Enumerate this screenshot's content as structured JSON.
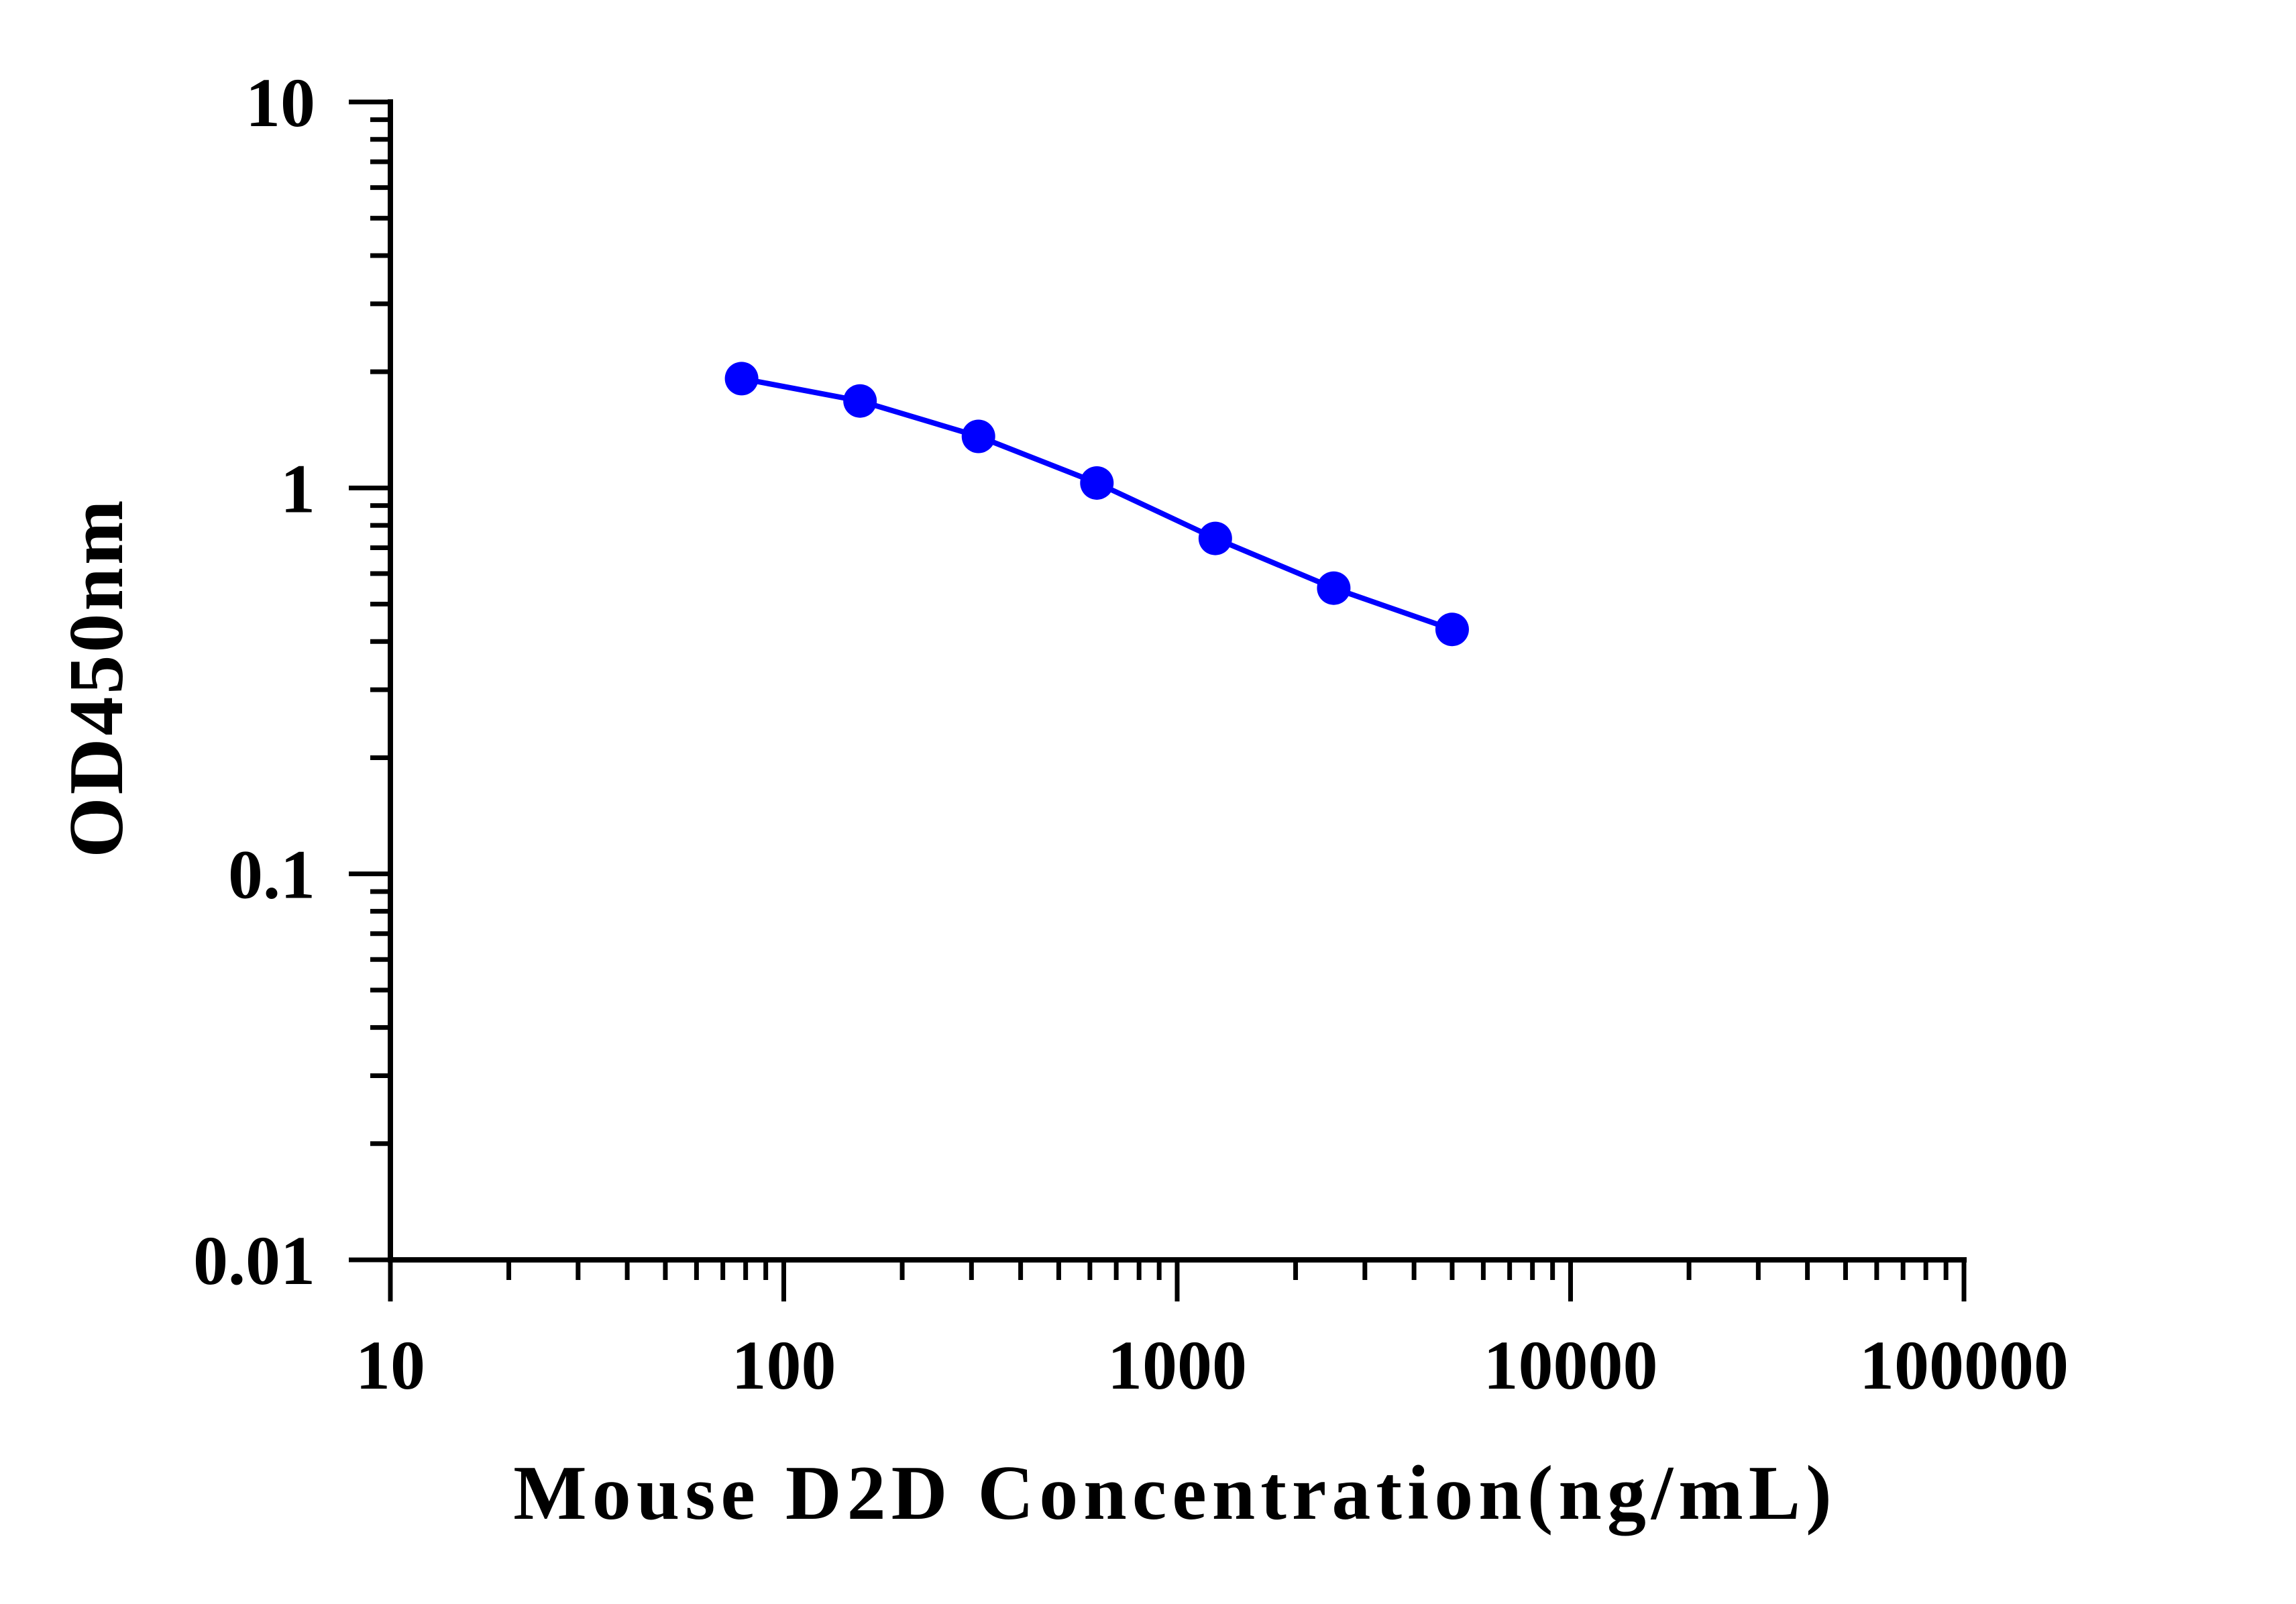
{
  "chart_data": {
    "type": "line",
    "title": "",
    "xlabel": "Mouse D2D Concentration(ng/mL)",
    "ylabel": "OD450nm",
    "x_scale": "log",
    "y_scale": "log",
    "xlim": [
      10,
      100000
    ],
    "ylim": [
      0.01,
      10
    ],
    "x_ticks": [
      10,
      100,
      1000,
      10000,
      100000
    ],
    "x_tick_labels": [
      "10",
      "100",
      "1000",
      "10000",
      "100000"
    ],
    "y_ticks": [
      0.01,
      0.1,
      1,
      10
    ],
    "y_tick_labels": [
      "0.01",
      "0.1",
      "1",
      "10"
    ],
    "grid": false,
    "legend": "none",
    "series": [
      {
        "color": "#0000ff",
        "x": [
          78.125,
          156.25,
          312.5,
          625,
          1250,
          2500,
          5000
        ],
        "y": [
          1.92,
          1.68,
          1.36,
          1.03,
          0.74,
          0.55,
          0.43
        ]
      }
    ]
  }
}
